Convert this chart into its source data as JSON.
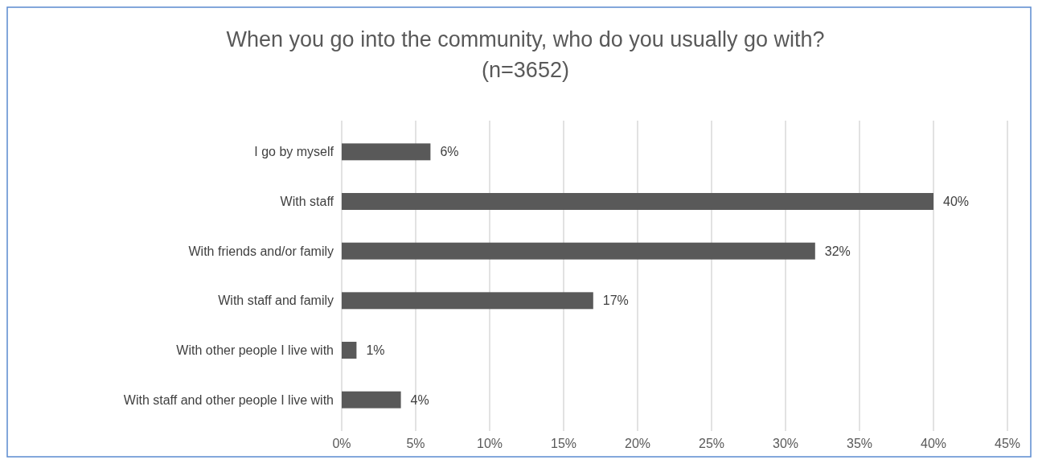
{
  "chart_data": {
    "type": "bar",
    "orientation": "horizontal",
    "title": "When you go into the community, who do you usually go with?",
    "subtitle": "(n=3652)",
    "categories": [
      "I go by myself",
      "With staff",
      "With friends and/or family",
      "With staff and family",
      "With other people I live with",
      "With staff and other people I live with"
    ],
    "values": [
      6,
      40,
      32,
      17,
      1,
      4
    ],
    "value_labels": [
      "6%",
      "40%",
      "32%",
      "17%",
      "1%",
      "4%"
    ],
    "color": "#595959",
    "xlim": [
      0,
      45
    ],
    "xticks": [
      {
        "value": 0,
        "label": "0%"
      },
      {
        "value": 5,
        "label": "5%"
      },
      {
        "value": 10,
        "label": "10%"
      },
      {
        "value": 15,
        "label": "15%"
      },
      {
        "value": 20,
        "label": "20%"
      },
      {
        "value": 25,
        "label": "25%"
      },
      {
        "value": 30,
        "label": "30%"
      },
      {
        "value": 35,
        "label": "35%"
      },
      {
        "value": 40,
        "label": "40%"
      },
      {
        "value": 45,
        "label": "45%"
      }
    ],
    "grid": "x"
  }
}
